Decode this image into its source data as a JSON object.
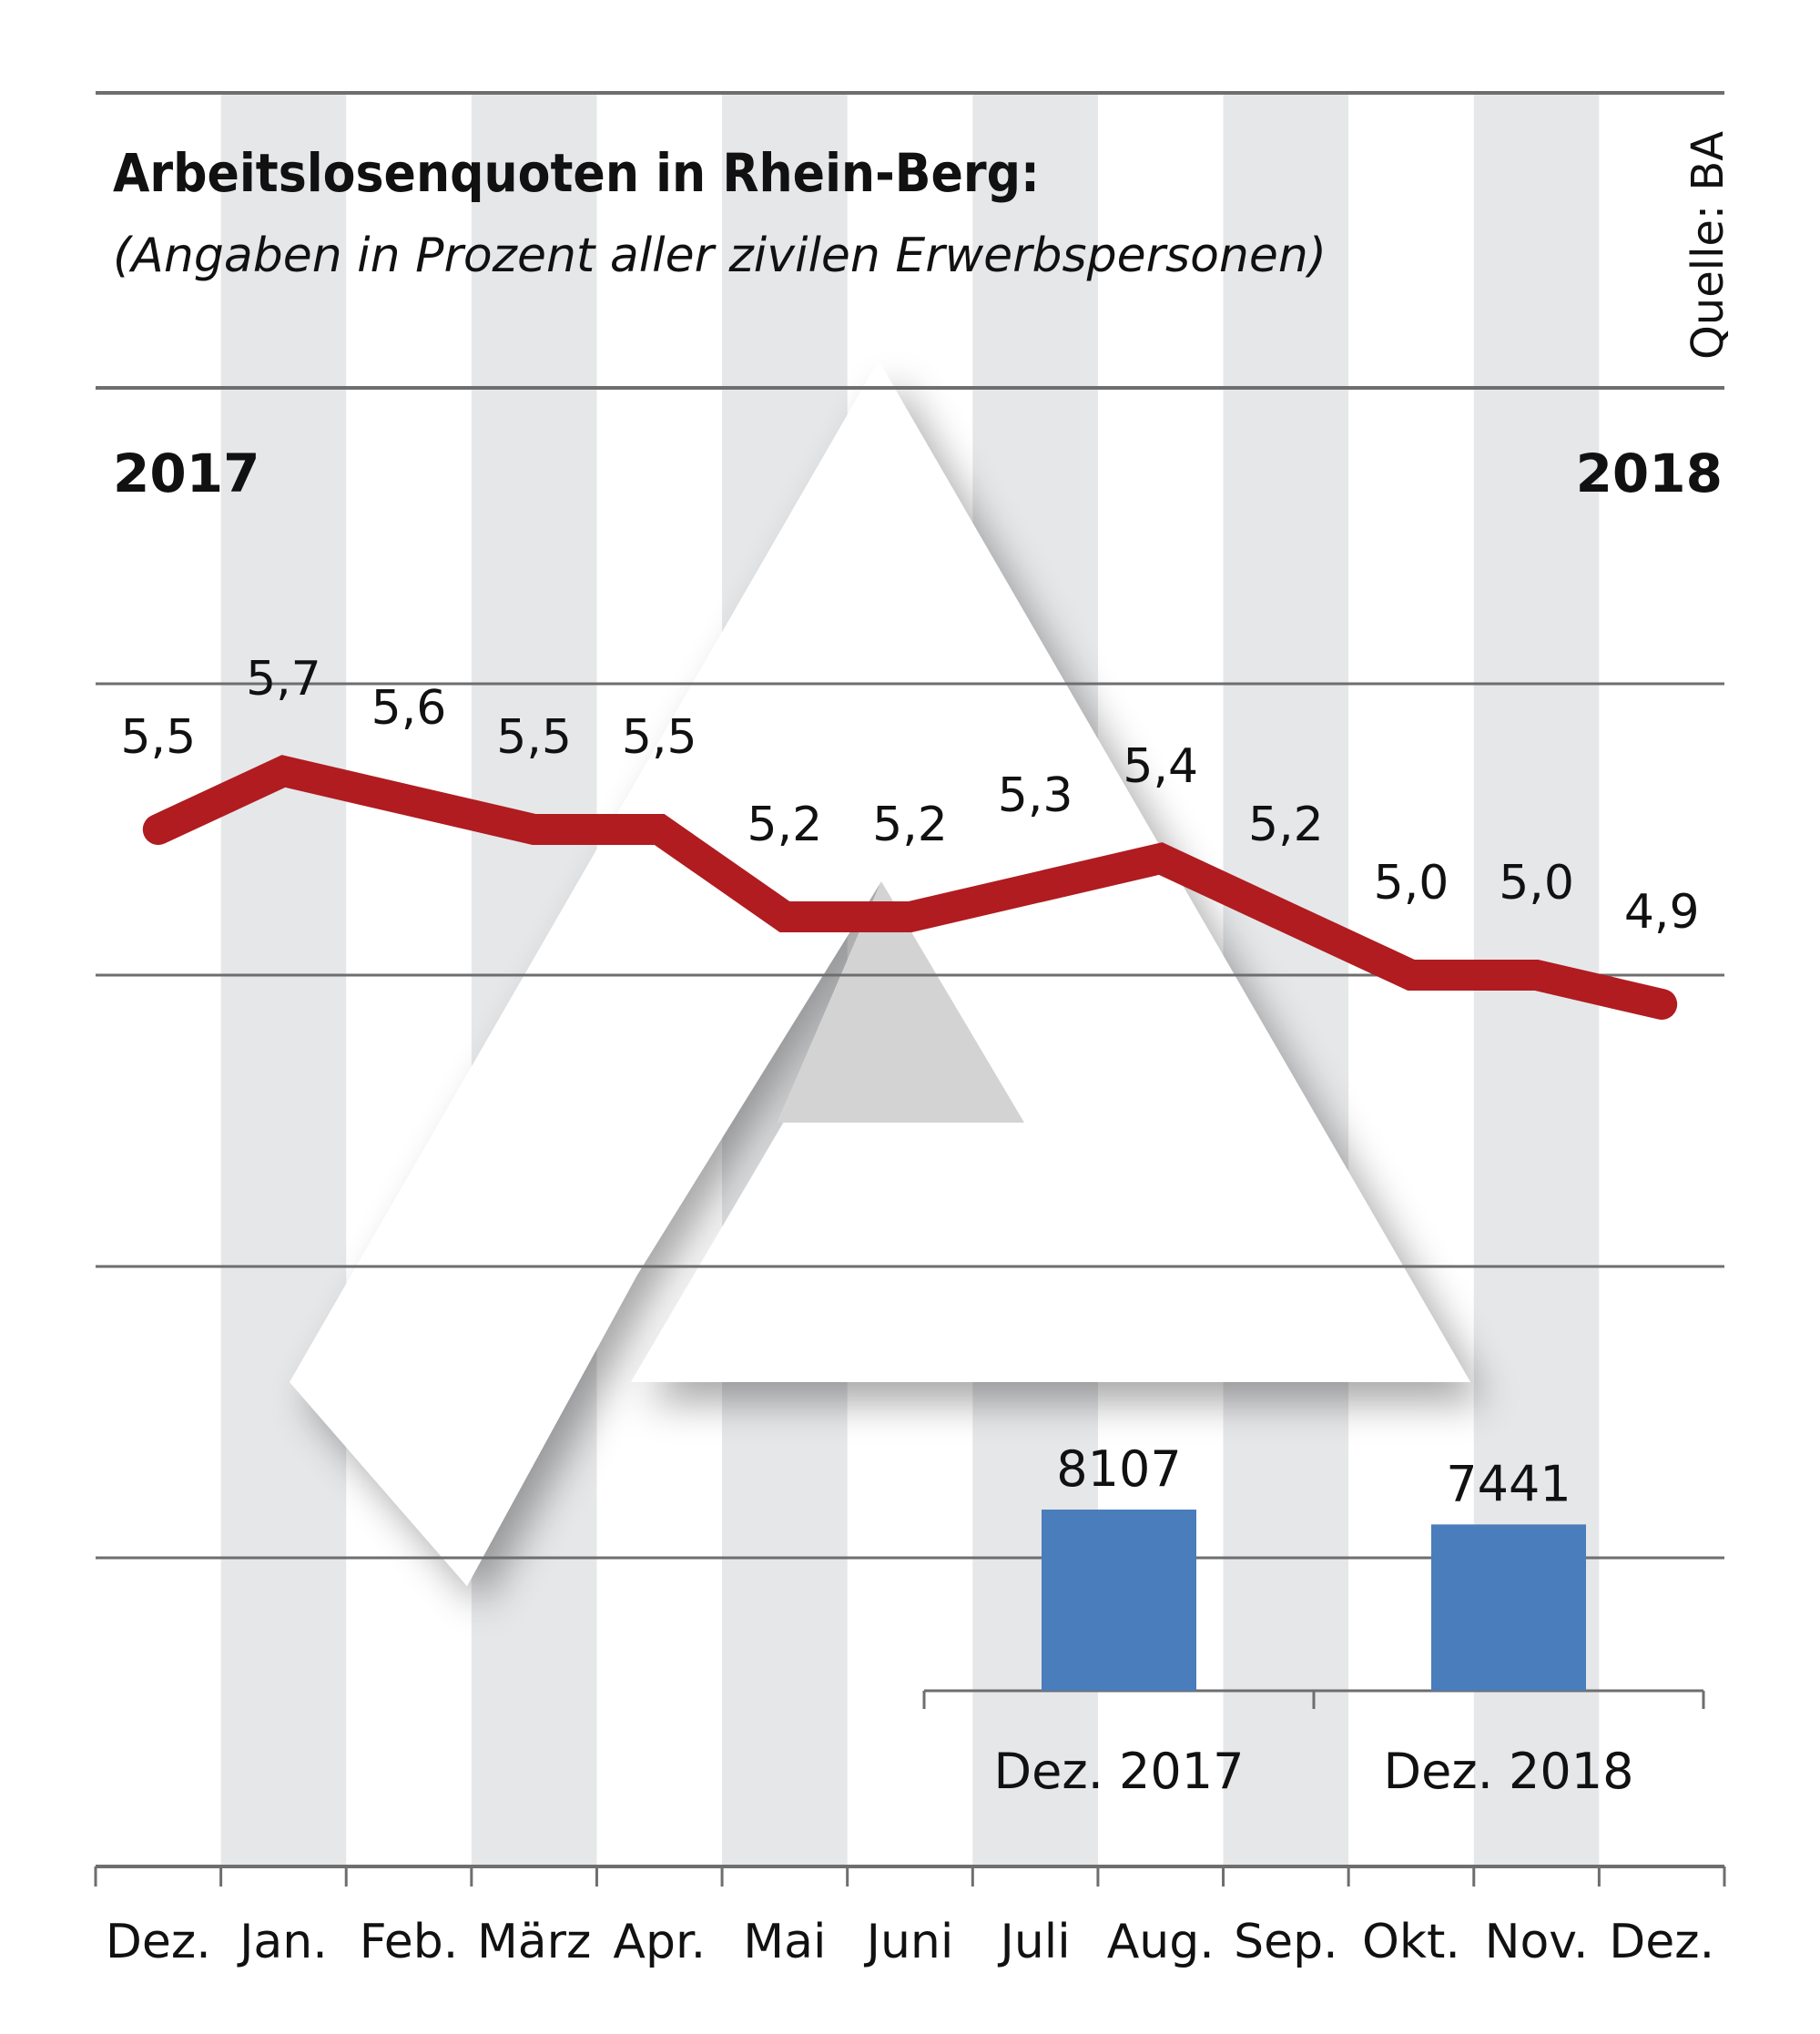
{
  "chart_data": {
    "type": "line",
    "title": "Arbeitslosenquoten in Rhein-Berg:",
    "subtitle": "(Angaben in Prozent aller zivilen Erwerbspersonen)",
    "source": "Quelle: BA",
    "year_start_label": "2017",
    "year_end_label": "2018",
    "categories": [
      "Dez.",
      "Jan.",
      "Feb.",
      "März",
      "Apr.",
      "Mai",
      "Juni",
      "Juli",
      "Aug.",
      "Sep.",
      "Okt.",
      "Nov.",
      "Dez."
    ],
    "series": [
      {
        "name": "Arbeitslosenquote",
        "values": [
          5.5,
          5.7,
          5.6,
          5.5,
          5.5,
          5.2,
          5.2,
          5.3,
          5.4,
          5.2,
          5.0,
          5.0,
          4.9
        ],
        "labels": [
          "5,5",
          "5,7",
          "5,6",
          "5,5",
          "5,5",
          "5,2",
          "5,2",
          "5,3",
          "5,4",
          "5,2",
          "5,0",
          "5,0",
          "4,9"
        ],
        "color": "#b01c20"
      }
    ],
    "ylim": [
      2.5,
      7.0
    ],
    "gridlines": [
      6.0,
      5.0,
      4.0,
      3.0
    ],
    "grid": true,
    "shaded_months": [
      1,
      3,
      5,
      7,
      9,
      11
    ],
    "inset_bar": {
      "type": "bar",
      "categories": [
        "Dez. 2017",
        "Dez. 2018"
      ],
      "values": [
        8107,
        7441
      ],
      "labels": [
        "8107",
        "7441"
      ],
      "color": "#4a7dbb"
    }
  }
}
